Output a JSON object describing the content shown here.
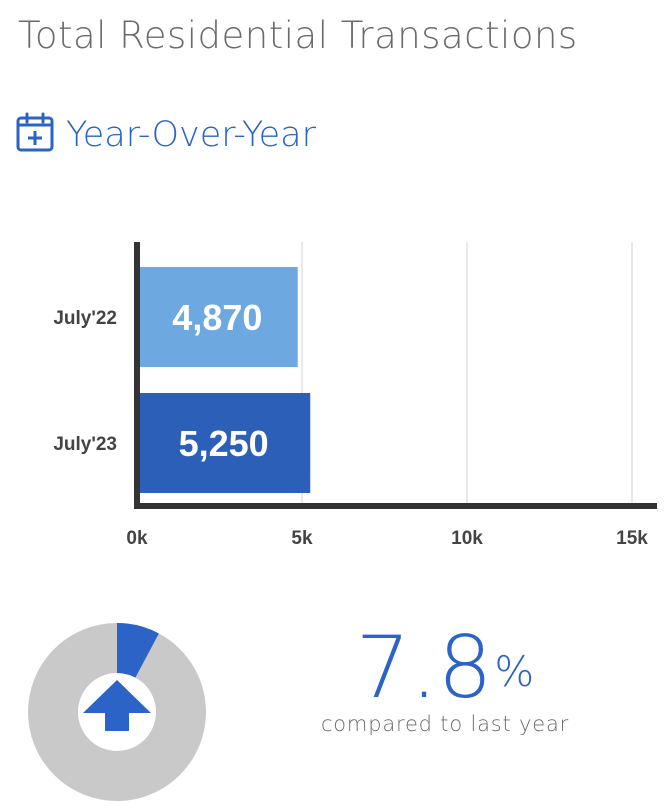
{
  "title": "Total Residential Transactions",
  "section": {
    "title": "Year-Over-Year",
    "icon": "calendar-plus-icon"
  },
  "colors": {
    "accent": "#2b63c6",
    "bar_july22": "#6ea8e0",
    "bar_july23": "#2b5fb8",
    "donut_track": "#c9c9c9",
    "axis": "#333333",
    "grid": "#e2e2e2"
  },
  "chart_data": {
    "type": "bar",
    "orientation": "horizontal",
    "categories": [
      "July'22",
      "July'23"
    ],
    "values": [
      4870,
      5250
    ],
    "data_labels": [
      "4,870",
      "5,250"
    ],
    "xlim": [
      0,
      15000
    ],
    "x_ticks": [
      0,
      5000,
      10000,
      15000
    ],
    "x_tick_labels": [
      "0k",
      "5k",
      "10k",
      "15k"
    ],
    "grid": true
  },
  "change": {
    "value": "7.8",
    "unit": "%",
    "caption": "compared to last year",
    "direction": "up",
    "indicator_fraction": 0.078
  }
}
